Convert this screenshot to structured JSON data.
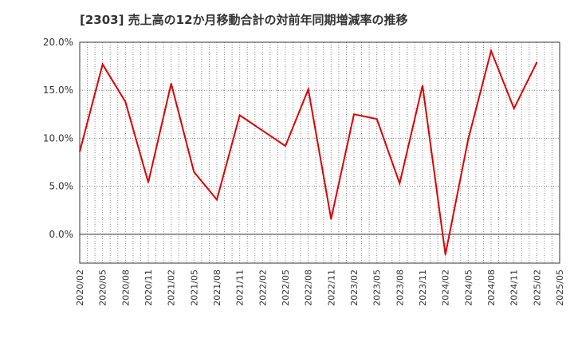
{
  "chart_data": {
    "type": "line",
    "title": "[2303]  売上高の12か月移動合計の対前年同期増減率の推移",
    "xlabel": "",
    "ylabel": "",
    "ylim": [
      -3,
      20
    ],
    "yticks": [
      0,
      5,
      10,
      15,
      20
    ],
    "ytick_labels": [
      "0.0%",
      "5.0%",
      "10.0%",
      "15.0%",
      "20.0%"
    ],
    "categories": [
      "2020/02",
      "2020/05",
      "2020/08",
      "2020/11",
      "2021/02",
      "2021/05",
      "2021/08",
      "2021/11",
      "2022/02",
      "2022/05",
      "2022/08",
      "2022/11",
      "2023/02",
      "2023/05",
      "2023/08",
      "2023/11",
      "2024/02",
      "2024/05",
      "2024/08",
      "2024/11",
      "2025/02",
      "2025/05"
    ],
    "series": [
      {
        "name": "対前年同期増減率",
        "color": "#dd0000",
        "values": [
          8.6,
          17.7,
          13.8,
          5.4,
          15.7,
          6.5,
          3.6,
          12.4,
          10.8,
          9.2,
          15.1,
          1.6,
          12.5,
          12.0,
          5.3,
          15.5,
          -2.1,
          9.9,
          19.1,
          13.1,
          17.9,
          null
        ]
      }
    ],
    "grid": true,
    "grid_style": "dotted"
  }
}
